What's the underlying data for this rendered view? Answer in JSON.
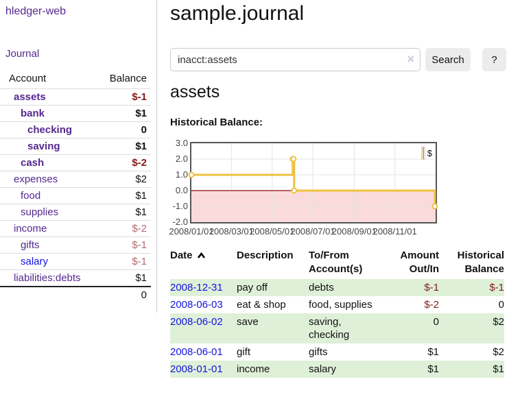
{
  "sidebar": {
    "title": "hledger-web",
    "journal_link": "Journal",
    "accounts_table": {
      "headers": {
        "account": "Account",
        "balance": "Balance"
      },
      "rows": [
        {
          "name": "assets",
          "depth": 0,
          "emph": true,
          "color": "purple",
          "balance": "$-1",
          "balance_tone": "neg"
        },
        {
          "name": "bank",
          "depth": 1,
          "emph": true,
          "color": "purple",
          "balance": "$1",
          "balance_tone": ""
        },
        {
          "name": "checking",
          "depth": 2,
          "emph": true,
          "color": "purple",
          "balance": "0",
          "balance_tone": ""
        },
        {
          "name": "saving",
          "depth": 2,
          "emph": true,
          "color": "purple",
          "balance": "$1",
          "balance_tone": ""
        },
        {
          "name": "cash",
          "depth": 1,
          "emph": true,
          "color": "purple",
          "balance": "$-2",
          "balance_tone": "neg"
        },
        {
          "name": "expenses",
          "depth": 0,
          "emph": false,
          "color": "purple",
          "balance": "$2",
          "balance_tone": ""
        },
        {
          "name": "food",
          "depth": 1,
          "emph": false,
          "color": "purple",
          "balance": "$1",
          "balance_tone": ""
        },
        {
          "name": "supplies",
          "depth": 1,
          "emph": false,
          "color": "purple",
          "balance": "$1",
          "balance_tone": ""
        },
        {
          "name": "income",
          "depth": 0,
          "emph": false,
          "color": "purple",
          "balance": "$-2",
          "balance_tone": "negl"
        },
        {
          "name": "gifts",
          "depth": 1,
          "emph": false,
          "color": "purple",
          "balance": "$-1",
          "balance_tone": "negl"
        },
        {
          "name": "salary",
          "depth": 1,
          "emph": false,
          "color": "blue",
          "balance": "$-1",
          "balance_tone": "negl"
        },
        {
          "name": "liabilities:debts",
          "depth": 0,
          "emph": false,
          "color": "purple",
          "balance": "$1",
          "balance_tone": ""
        }
      ],
      "total": "0"
    }
  },
  "main": {
    "title": "sample.journal",
    "search": {
      "value": "inacct:assets",
      "clear_icon": "×",
      "button_label": "Search",
      "help_label": "?"
    },
    "account_heading": "assets",
    "chart_heading": "Historical Balance:"
  },
  "chart_data": {
    "type": "line",
    "step": true,
    "title": "Historical Balance",
    "series": [
      {
        "name": "$",
        "color": "#edc240",
        "x": [
          "2008-01-01",
          "2008-06-01",
          "2008-06-02",
          "2008-06-03",
          "2008-12-31"
        ],
        "y": [
          1,
          2,
          2,
          0,
          -1
        ]
      }
    ],
    "x_range": [
      "2008-01-01",
      "2009-01-01"
    ],
    "ylim": [
      -2,
      3
    ],
    "y_ticks": [
      3,
      2,
      1,
      0,
      -1,
      -2
    ],
    "y_tick_labels": [
      "3.0",
      "2.0",
      "1.0",
      "0.0",
      "-1.0",
      "-2.0"
    ],
    "x_tick_labels": [
      "2008/01/01",
      "2008/03/01",
      "2008/05/01",
      "2008/07/01",
      "2008/09/01",
      "2008/11/01"
    ],
    "legend": {
      "position": "top-right",
      "entries": [
        "$"
      ]
    },
    "grid": true,
    "negative_region_color": "#fadada",
    "zero_line_color": "#8b1111",
    "grid_line_color": "#e4e4e4"
  },
  "register": {
    "headers": [
      "Date",
      "Description",
      "To/From Account(s)",
      "Amount Out/In",
      "Historical Balance"
    ],
    "sort": {
      "column": "Date",
      "direction": "ascending"
    },
    "rows": [
      {
        "date": "2008-12-31",
        "description": "pay off",
        "accounts": "debts",
        "amount": "$-1",
        "amount_negative": true,
        "balance": "$-1",
        "balance_negative": true
      },
      {
        "date": "2008-06-03",
        "description": "eat & shop",
        "accounts": "food, supplies",
        "amount": "$-2",
        "amount_negative": true,
        "balance": "0",
        "balance_negative": false
      },
      {
        "date": "2008-06-02",
        "description": "save",
        "accounts": "saving, checking",
        "amount": "0",
        "amount_negative": false,
        "balance": "$2",
        "balance_negative": false
      },
      {
        "date": "2008-06-01",
        "description": "gift",
        "accounts": "gifts",
        "amount": "$1",
        "amount_negative": false,
        "balance": "$2",
        "balance_negative": false
      },
      {
        "date": "2008-01-01",
        "description": "income",
        "accounts": "salary",
        "amount": "$1",
        "amount_negative": false,
        "balance": "$1",
        "balance_negative": false
      }
    ]
  },
  "colors": {
    "link_purple": "#54278f",
    "link_blue": "#1414e0",
    "negative_strong": "#801818",
    "negative_muted": "#b46a6e",
    "row_stripe_green": "#dff0d8",
    "series_gold": "#edc240"
  }
}
